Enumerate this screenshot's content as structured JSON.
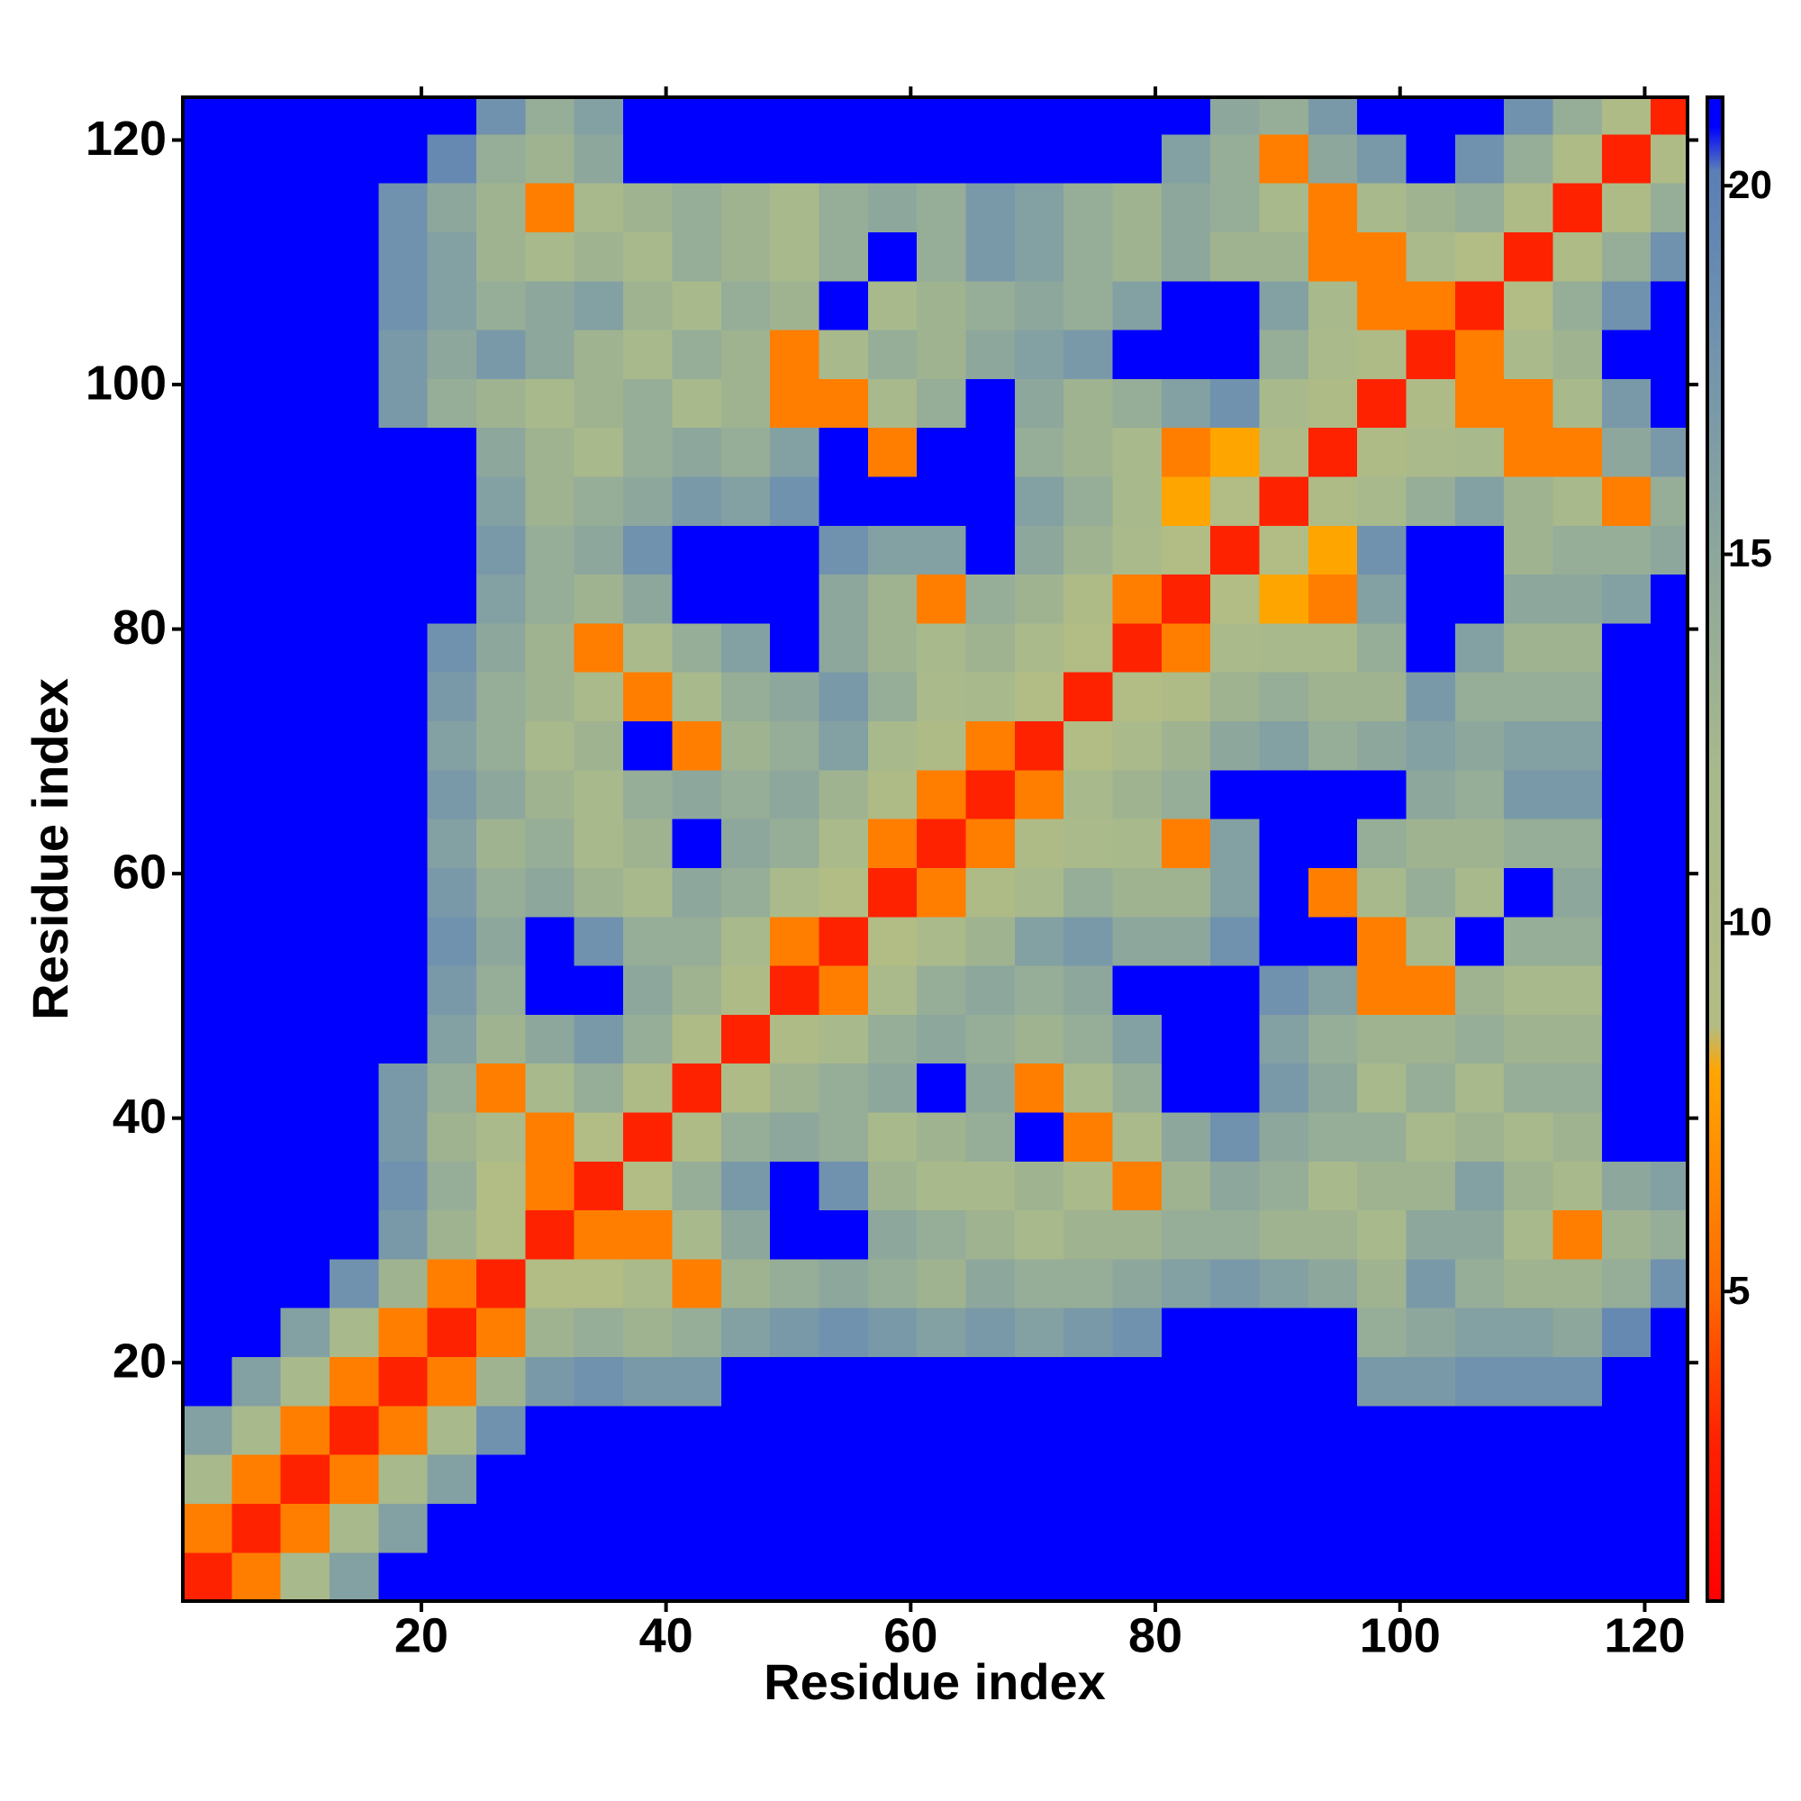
{
  "chart_data": {
    "type": "heatmap",
    "xlabel": "Residue index",
    "ylabel": "Residue index",
    "xlim": [
      0.5,
      123.5
    ],
    "ylim": [
      0.5,
      123.5
    ],
    "xticks": [
      20,
      40,
      60,
      80,
      100,
      120
    ],
    "yticks": [
      20,
      40,
      60,
      80,
      100,
      120
    ],
    "zlim": [
      0.8,
      21.2
    ],
    "zticks": [
      5,
      10,
      15,
      20
    ],
    "colorscale": [
      [
        0.8,
        "#ff0000"
      ],
      [
        3,
        "#ff2200"
      ],
      [
        5,
        "#ff6a00"
      ],
      [
        8,
        "#ffa500"
      ],
      [
        8.6,
        "#b3bc84"
      ],
      [
        12,
        "#a8b98c"
      ],
      [
        15,
        "#8da79c"
      ],
      [
        18,
        "#7092ae"
      ],
      [
        20.2,
        "#5b7fb6"
      ],
      [
        20.8,
        "#0000ff"
      ]
    ],
    "symmetric": true,
    "x": [
      2.5,
      6.5,
      10.5,
      14.5,
      18.5,
      22.5,
      26.5,
      30.5,
      34.5,
      38.5,
      42.5,
      46.5,
      50.5,
      54.5,
      58.5,
      62.5,
      66.5,
      70.5,
      74.5,
      78.5,
      82.5,
      86.5,
      90.5,
      94.5,
      98.5,
      102.5,
      106.5,
      110.5,
      114.5,
      118.5,
      122.5
    ],
    "y": [
      2.5,
      6.5,
      10.5,
      14.5,
      18.5,
      22.5,
      26.5,
      30.5,
      34.5,
      38.5,
      42.5,
      46.5,
      50.5,
      54.5,
      58.5,
      62.5,
      66.5,
      70.5,
      74.5,
      78.5,
      82.5,
      86.5,
      90.5,
      94.5,
      98.5,
      102.5,
      106.5,
      110.5,
      114.5,
      118.5,
      122.5
    ],
    "z": [
      [
        3
      ],
      [
        6,
        3
      ],
      [
        12,
        6,
        3
      ],
      [
        16,
        12,
        6,
        3
      ],
      [
        22,
        16,
        12,
        6,
        3
      ],
      [
        22,
        22,
        16,
        12,
        6,
        3
      ],
      [
        22,
        22,
        22,
        18,
        13,
        6,
        3
      ],
      [
        22,
        22,
        22,
        22,
        17,
        13,
        9,
        3
      ],
      [
        22,
        22,
        22,
        22,
        18,
        14,
        9,
        6,
        3
      ],
      [
        22,
        22,
        22,
        22,
        17,
        13,
        11,
        6,
        9,
        3
      ],
      [
        22,
        22,
        22,
        22,
        17,
        14,
        6,
        12,
        14,
        10,
        3
      ],
      [
        22,
        22,
        22,
        22,
        22,
        16,
        13,
        15,
        17,
        14,
        10,
        3
      ],
      [
        22,
        22,
        22,
        22,
        22,
        17,
        14,
        22,
        22,
        15,
        13,
        10,
        3
      ],
      [
        22,
        22,
        22,
        22,
        22,
        18,
        15,
        22,
        18,
        14,
        14,
        12,
        6,
        3
      ],
      [
        22,
        22,
        22,
        22,
        22,
        17,
        14,
        15,
        13,
        12,
        15,
        14,
        11,
        9,
        3
      ],
      [
        22,
        22,
        22,
        22,
        22,
        16,
        13,
        14,
        12,
        13,
        22,
        15,
        14,
        11,
        6,
        3
      ],
      [
        22,
        22,
        22,
        22,
        22,
        17,
        15,
        13,
        12,
        14,
        15,
        14,
        15,
        13,
        10,
        6,
        3
      ],
      [
        22,
        22,
        22,
        22,
        22,
        16,
        14,
        12,
        13,
        22,
        6,
        13,
        14,
        16,
        12,
        10,
        6,
        3
      ],
      [
        22,
        22,
        22,
        22,
        22,
        17,
        14,
        13,
        11,
        6,
        12,
        14,
        15,
        17,
        14,
        11,
        12,
        9,
        3
      ],
      [
        22,
        22,
        22,
        22,
        22,
        18,
        15,
        13,
        6,
        11,
        14,
        16,
        22,
        15,
        13,
        12,
        13,
        11,
        9,
        3
      ],
      [
        22,
        22,
        22,
        22,
        22,
        22,
        16,
        14,
        13,
        15,
        22,
        22,
        22,
        15,
        13,
        6,
        14,
        13,
        10,
        6,
        3
      ],
      [
        22,
        22,
        22,
        22,
        22,
        22,
        17,
        14,
        15,
        18,
        22,
        22,
        22,
        18,
        16,
        16,
        22,
        15,
        13,
        11,
        9,
        3
      ],
      [
        22,
        22,
        22,
        22,
        22,
        22,
        16,
        13,
        14,
        15,
        17,
        16,
        18,
        22,
        22,
        22,
        22,
        16,
        14,
        12,
        8,
        9,
        3
      ],
      [
        22,
        22,
        22,
        22,
        22,
        22,
        15,
        13,
        12,
        14,
        15,
        14,
        16,
        22,
        6,
        22,
        22,
        14,
        13,
        12,
        6,
        8,
        10,
        3
      ],
      [
        22,
        22,
        22,
        22,
        17,
        14,
        13,
        12,
        13,
        14,
        12,
        13,
        6,
        6,
        12,
        14,
        22,
        15,
        13,
        14,
        16,
        18,
        12,
        10,
        3
      ],
      [
        22,
        22,
        22,
        22,
        17,
        15,
        17,
        15,
        13,
        12,
        14,
        13,
        6,
        12,
        14,
        13,
        15,
        16,
        17,
        22,
        22,
        22,
        14,
        11,
        10,
        3
      ],
      [
        22,
        22,
        22,
        22,
        18,
        16,
        14,
        15,
        16,
        13,
        12,
        14,
        13,
        22,
        12,
        13,
        14,
        15,
        14,
        16,
        22,
        22,
        16,
        12,
        6,
        6,
        3
      ],
      [
        22,
        22,
        22,
        22,
        18,
        16,
        13,
        12,
        13,
        12,
        14,
        13,
        12,
        14,
        22,
        14,
        17,
        16,
        14,
        13,
        15,
        13,
        13,
        6,
        6,
        11,
        9,
        3
      ],
      [
        22,
        22,
        22,
        22,
        18,
        15,
        13,
        6,
        12,
        13,
        14,
        13,
        12,
        14,
        15,
        14,
        17,
        16,
        14,
        13,
        15,
        14,
        12,
        6,
        12,
        13,
        14,
        10,
        3
      ],
      [
        22,
        22,
        22,
        22,
        22,
        19,
        14,
        13,
        15,
        22,
        22,
        22,
        22,
        22,
        22,
        22,
        22,
        22,
        22,
        22,
        16,
        14,
        6,
        15,
        17,
        22,
        18,
        14,
        10,
        3
      ],
      [
        22,
        22,
        22,
        22,
        22,
        22,
        18,
        14,
        16,
        22,
        22,
        22,
        22,
        22,
        22,
        22,
        22,
        22,
        22,
        22,
        22,
        15,
        14,
        17,
        22,
        22,
        22,
        18,
        14,
        10,
        3
      ]
    ]
  }
}
